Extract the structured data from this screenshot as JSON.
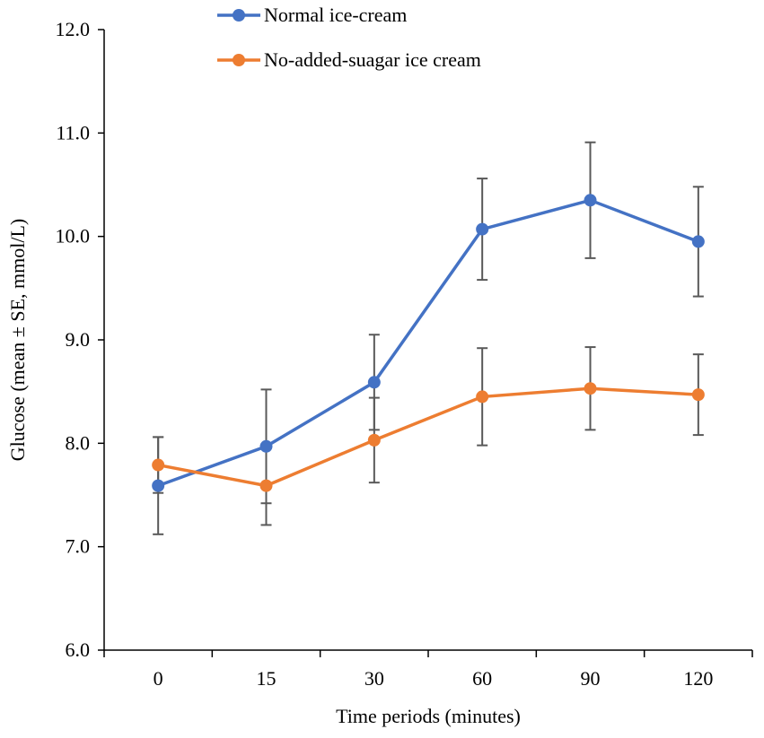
{
  "chart_data": {
    "type": "line",
    "title": "",
    "xlabel": "Time periods (minutes)",
    "ylabel": "Glucose (mean ± SE,  mmol/L)",
    "categories": [
      "0",
      "15",
      "30",
      "60",
      "90",
      "120"
    ],
    "ylim": [
      6.0,
      12.0
    ],
    "yticks": [
      "6.0",
      "7.0",
      "8.0",
      "9.0",
      "10.0",
      "11.0",
      "12.0"
    ],
    "grid": false,
    "legend_position": "top",
    "series": [
      {
        "name": "Normal ice-cream",
        "color": "#4472C4",
        "values": [
          7.59,
          7.97,
          8.59,
          10.07,
          10.35,
          9.95
        ],
        "error": [
          0.47,
          0.55,
          0.46,
          0.49,
          0.56,
          0.53
        ]
      },
      {
        "name": "No-added-suagar ice cream",
        "color": "#ED7D31",
        "values": [
          7.79,
          7.59,
          8.03,
          8.45,
          8.53,
          8.47
        ],
        "error": [
          0.27,
          0.38,
          0.41,
          0.47,
          0.4,
          0.39
        ]
      }
    ]
  }
}
